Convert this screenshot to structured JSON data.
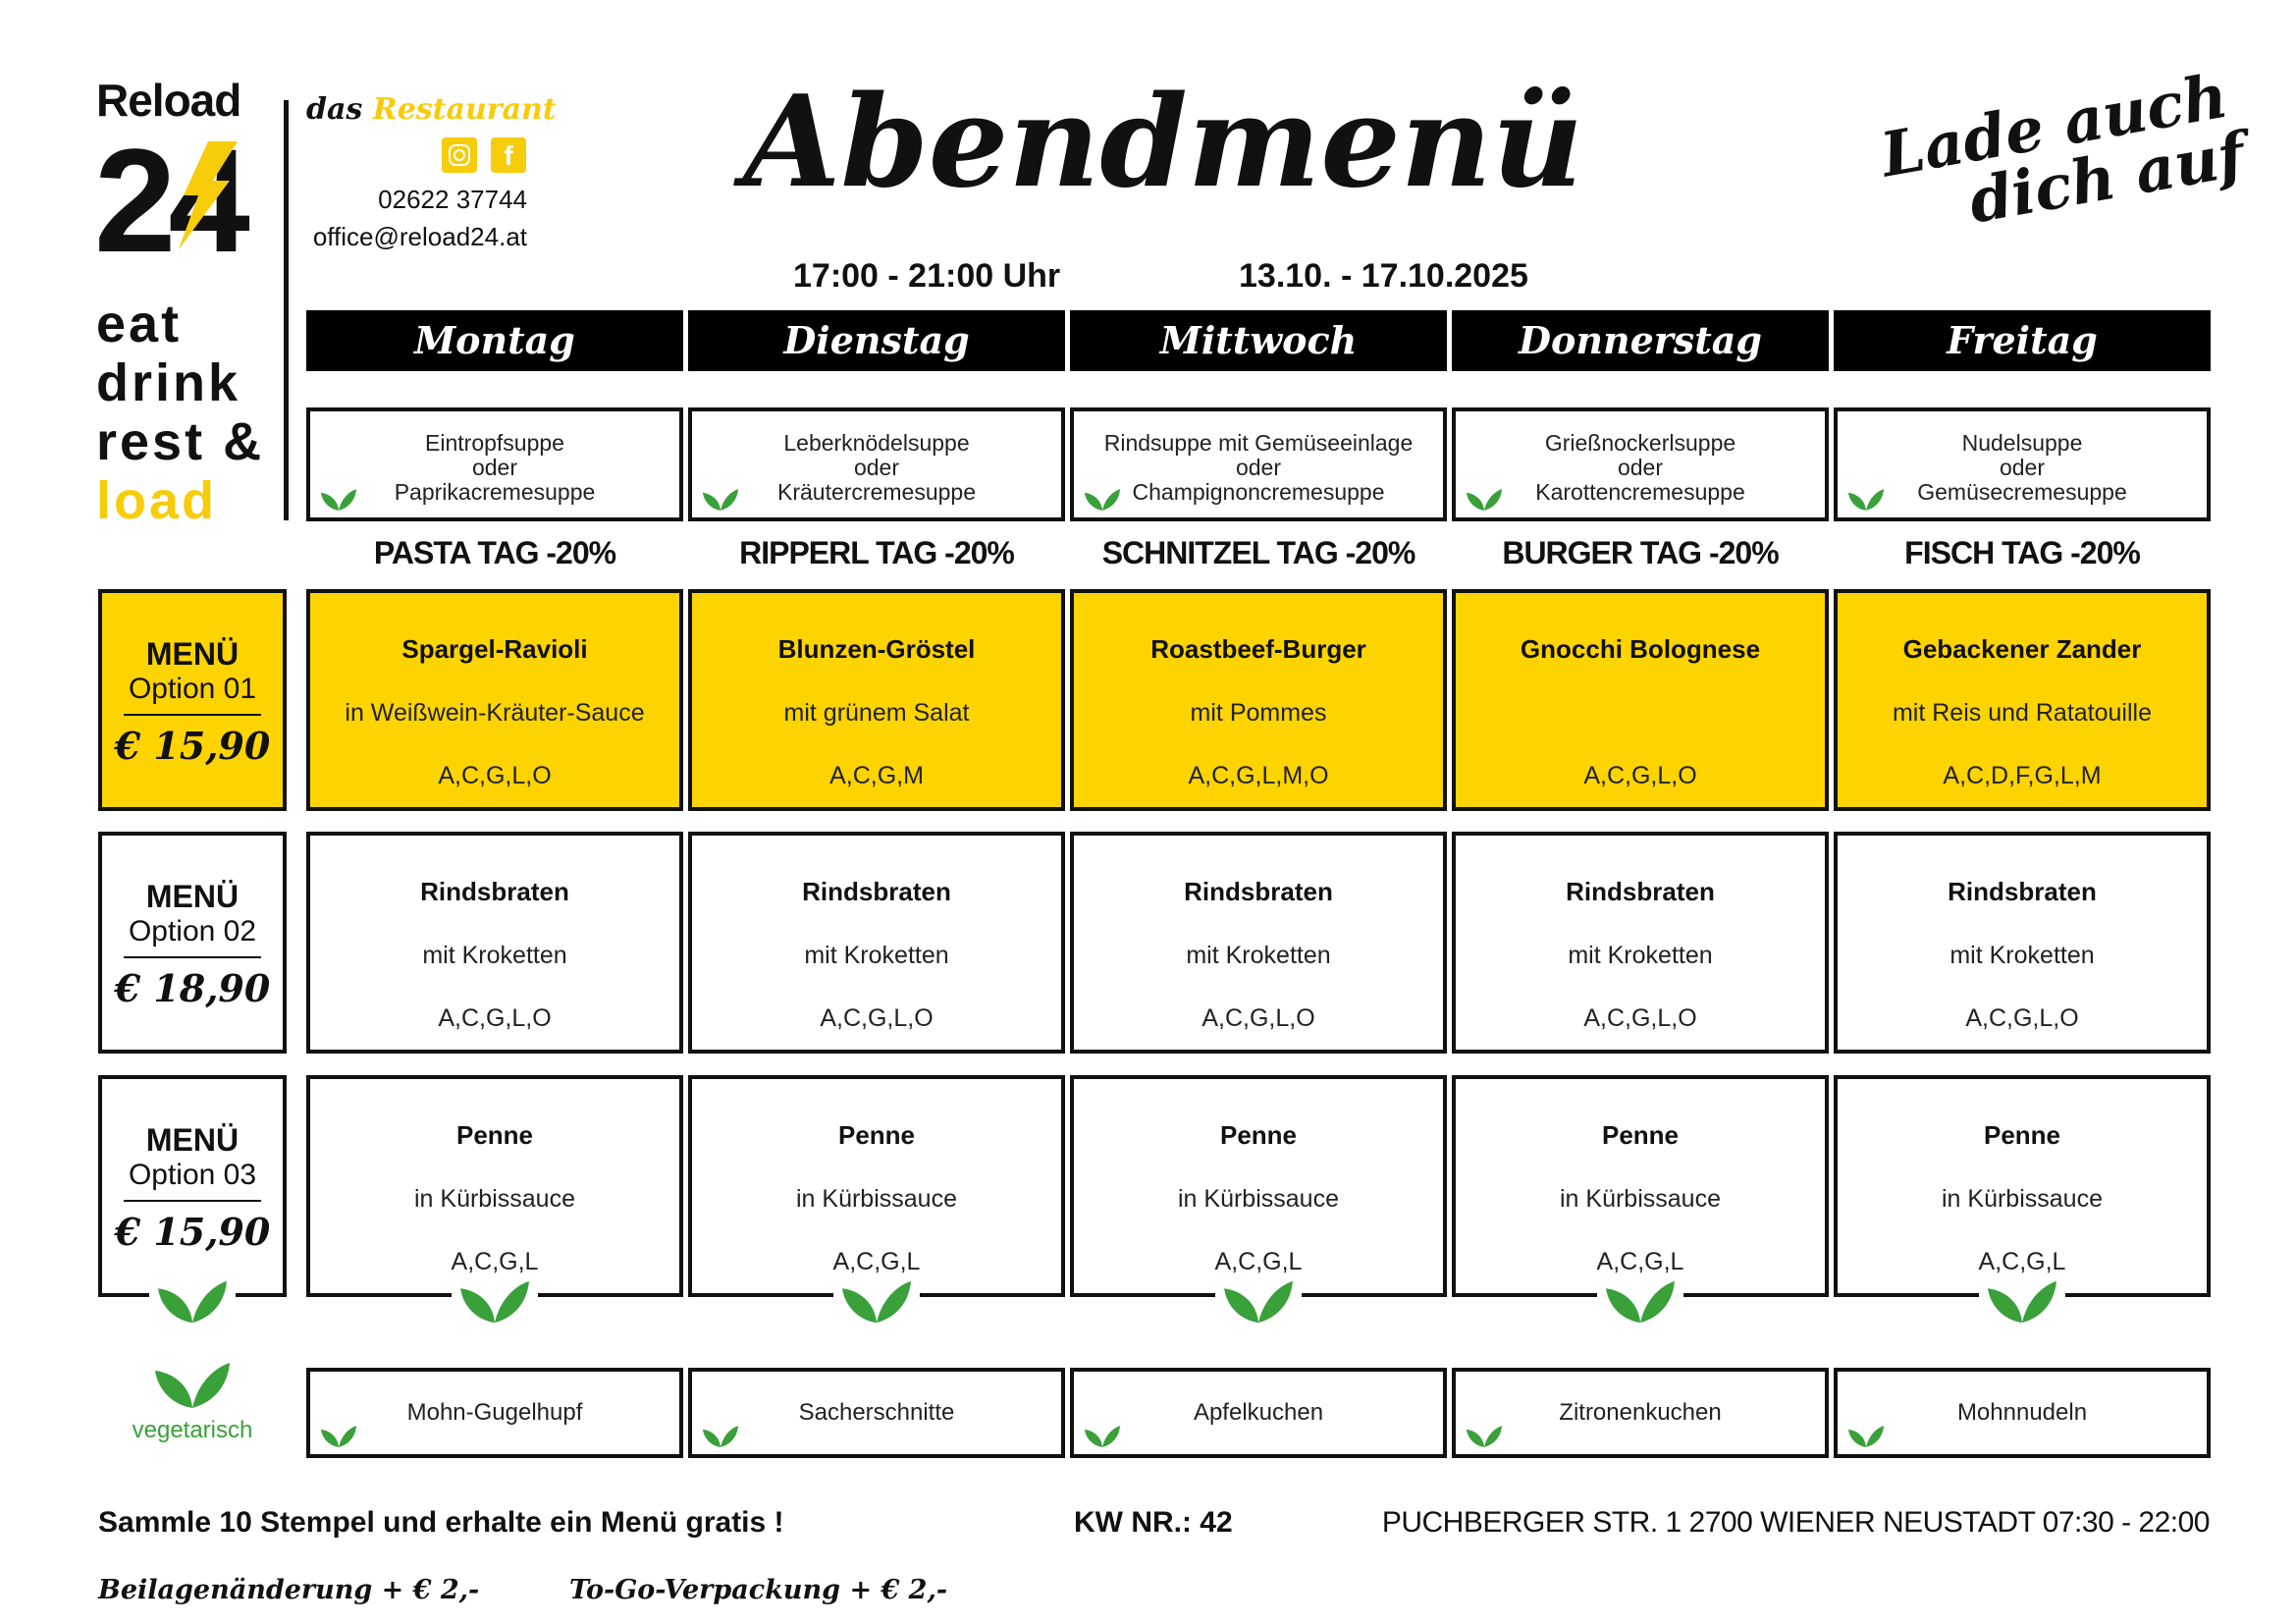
{
  "brand": {
    "reload": "Reload",
    "num": "24",
    "tagline": [
      "eat",
      "drink",
      "rest &",
      "load"
    ],
    "das": "das",
    "restaurant": "Restaurant",
    "phone": "02622 37744",
    "email": "office@reload24.at",
    "slogan_1": "Lade auch",
    "slogan_2": "dich auf"
  },
  "colors": {
    "accent": "#fdd300",
    "leaf": "#3aa03a"
  },
  "title": "Abendmenü",
  "time": "17:00 - 21:00 Uhr",
  "date_range": "13.10. - 17.10.2025",
  "days": [
    {
      "name": "Montag",
      "soup": [
        "Eintropfsuppe",
        "oder",
        "Paprikacremesuppe"
      ],
      "tag": "PASTA TAG -20%",
      "dessert": "Mohn-Gugelhupf"
    },
    {
      "name": "Dienstag",
      "soup": [
        "Leberknödelsuppe",
        "oder",
        "Kräutercremesuppe"
      ],
      "tag": "RIPPERL TAG -20%",
      "dessert": "Sacherschnitte"
    },
    {
      "name": "Mittwoch",
      "soup": [
        "Rindsuppe mit Gemüseeinlage",
        "oder",
        "Champignoncremesuppe"
      ],
      "tag": "SCHNITZEL TAG -20%",
      "dessert": "Apfelkuchen"
    },
    {
      "name": "Donnerstag",
      "soup": [
        "Grießnockerlsuppe",
        "oder",
        "Karottencremesuppe"
      ],
      "tag": "BURGER TAG -20%",
      "dessert": "Zitronenkuchen"
    },
    {
      "name": "Freitag",
      "soup": [
        "Nudelsuppe",
        "oder",
        "Gemüsecremesuppe"
      ],
      "tag": "FISCH TAG -20%",
      "dessert": "Mohnnudeln"
    }
  ],
  "menus": [
    {
      "label": "MENÜ",
      "option": "Option 01",
      "price": "€ 15,90",
      "highlight": true,
      "vegetarian": false,
      "dishes": [
        {
          "name": "Spargel-Ravioli",
          "side": "in Weißwein-Kräuter-Sauce",
          "allergens": "A,C,G,L,O"
        },
        {
          "name": "Blunzen-Gröstel",
          "side": "mit grünem Salat",
          "allergens": "A,C,G,M"
        },
        {
          "name": "Roastbeef-Burger",
          "side": "mit Pommes",
          "allergens": "A,C,G,L,M,O"
        },
        {
          "name": "Gnocchi Bolognese",
          "side": "",
          "allergens": "A,C,G,L,O"
        },
        {
          "name": "Gebackener Zander",
          "side": "mit Reis und Ratatouille",
          "allergens": "A,C,D,F,G,L,M"
        }
      ]
    },
    {
      "label": "MENÜ",
      "option": "Option 02",
      "price": "€ 18,90",
      "highlight": false,
      "vegetarian": false,
      "dishes": [
        {
          "name": "Rindsbraten",
          "side": "mit Kroketten",
          "allergens": "A,C,G,L,O"
        },
        {
          "name": "Rindsbraten",
          "side": "mit Kroketten",
          "allergens": "A,C,G,L,O"
        },
        {
          "name": "Rindsbraten",
          "side": "mit Kroketten",
          "allergens": "A,C,G,L,O"
        },
        {
          "name": "Rindsbraten",
          "side": "mit Kroketten",
          "allergens": "A,C,G,L,O"
        },
        {
          "name": "Rindsbraten",
          "side": "mit Kroketten",
          "allergens": "A,C,G,L,O"
        }
      ]
    },
    {
      "label": "MENÜ",
      "option": "Option 03",
      "price": "€ 15,90",
      "highlight": false,
      "vegetarian": true,
      "dishes": [
        {
          "name": "Penne",
          "side": "in Kürbissauce",
          "allergens": "A,C,G,L"
        },
        {
          "name": "Penne",
          "side": "in Kürbissauce",
          "allergens": "A,C,G,L"
        },
        {
          "name": "Penne",
          "side": "in Kürbissauce",
          "allergens": "A,C,G,L"
        },
        {
          "name": "Penne",
          "side": "in Kürbissauce",
          "allergens": "A,C,G,L"
        },
        {
          "name": "Penne",
          "side": "in Kürbissauce",
          "allergens": "A,C,G,L"
        }
      ]
    }
  ],
  "legend": {
    "vegetarian": "vegetarisch"
  },
  "footer": {
    "stamps": "Sammle 10 Stempel und erhalte ein Menü gratis !",
    "kw": "KW NR.: 42",
    "address": "PUCHBERGER STR. 1 2700 WIENER NEUSTADT 07:30 - 22:00",
    "side_change": "Beilagenänderung + € 2,-",
    "togo": "To-Go-Verpackung + € 2,-"
  }
}
